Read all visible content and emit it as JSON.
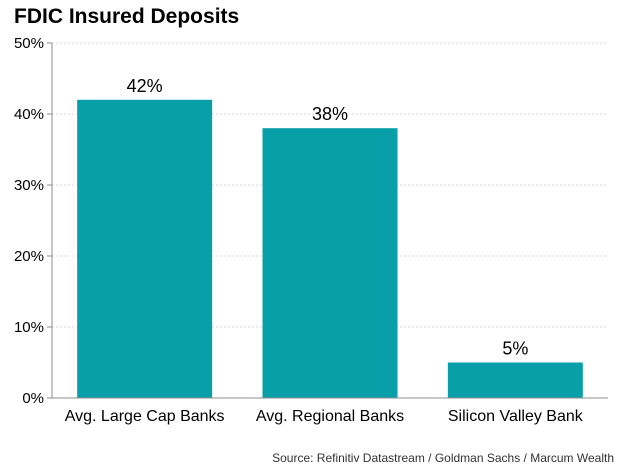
{
  "chart_data": {
    "type": "bar",
    "title": "FDIC Insured Deposits",
    "categories": [
      "Avg. Large Cap Banks",
      "Avg. Regional Banks",
      "Silicon Valley Bank"
    ],
    "values": [
      42,
      38,
      5
    ],
    "data_labels": [
      "42%",
      "38%",
      "5%"
    ],
    "yticks": [
      "0%",
      "10%",
      "20%",
      "30%",
      "40%",
      "50%"
    ],
    "ylim": [
      0,
      50
    ],
    "grid": true,
    "bar_color": "#089FA8",
    "xlabel": "",
    "ylabel": ""
  },
  "source": "Source: Refinitiv Datastream / Goldman Sachs  / Marcum Wealth"
}
